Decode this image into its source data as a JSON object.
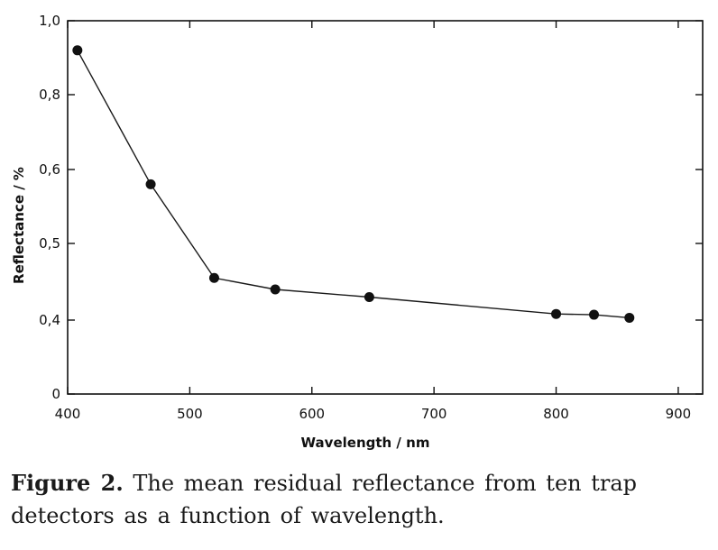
{
  "chart_data": {
    "type": "line",
    "xlabel": "Wavelength / nm",
    "ylabel": "Reflectance / %",
    "xlim": [
      400,
      920
    ],
    "x_ticks": [
      {
        "value": 400,
        "label": "400"
      },
      {
        "value": 500,
        "label": "500"
      },
      {
        "value": 600,
        "label": "600"
      },
      {
        "value": 700,
        "label": "700"
      },
      {
        "value": 800,
        "label": "800"
      },
      {
        "value": 900,
        "label": "900"
      }
    ],
    "y_ticks": [
      {
        "label": "0"
      },
      {
        "label": "0,4"
      },
      {
        "label": "0,5"
      },
      {
        "label": "0,6"
      },
      {
        "label": "0,8"
      },
      {
        "label": "1,0"
      }
    ],
    "series": [
      {
        "x": [
          408,
          468,
          520,
          570,
          647,
          800,
          831,
          860
        ],
        "y": [
          0.92,
          0.58,
          0.455,
          0.44,
          0.43,
          0.408,
          0.407,
          0.403
        ]
      }
    ],
    "grid": false,
    "legend": "none",
    "colors": {
      "line": "#1a1a1a",
      "marker": "#111111",
      "axis": "#111111"
    }
  },
  "caption": {
    "label": "Figure 2.",
    "text": " The mean residual reflectance from ten trap detectors as a function of wavelength."
  }
}
